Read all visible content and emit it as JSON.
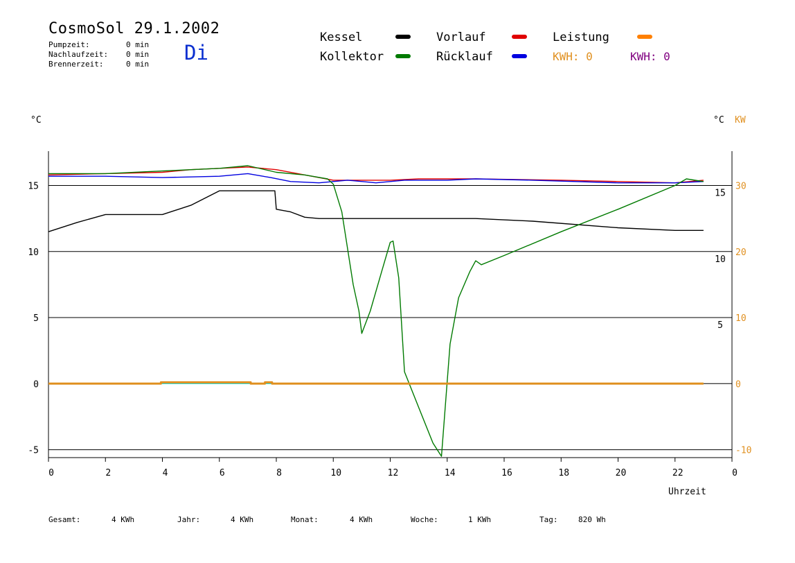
{
  "header": {
    "title": "CosmoSol 29.1.2002",
    "weekday": "Di",
    "stats": [
      {
        "label": "Pumpzeit:",
        "value": "0 min"
      },
      {
        "label": "Nachlaufzeit:",
        "value": "0 min"
      },
      {
        "label": "Brennerzeit:",
        "value": "0 min"
      }
    ]
  },
  "legend": {
    "kessel": {
      "label": "Kessel",
      "color": "#000000"
    },
    "kollektor": {
      "label": "Kollektor",
      "color": "#007a00"
    },
    "vorlauf": {
      "label": "Vorlauf",
      "color": "#e00000"
    },
    "ruecklauf": {
      "label": "Rücklauf",
      "color": "#0000e0"
    },
    "leistung": {
      "label": "Leistung",
      "color": "#ff8000"
    },
    "kwh_1": {
      "label": "KWH: 0",
      "color": "#e09020"
    },
    "kwh_2": {
      "label": "KWH: 0",
      "color": "#800080"
    }
  },
  "axes": {
    "left_unit": "°C",
    "right_unit_c": "°C",
    "right_unit_kw": "KW",
    "x_label": "Uhrzeit"
  },
  "footer": [
    {
      "label": "Gesamt:",
      "value": "4 KWh"
    },
    {
      "label": "Jahr:",
      "value": "4 KWh"
    },
    {
      "label": "Monat:",
      "value": "4 KWh"
    },
    {
      "label": "Woche:",
      "value": "1 KWh"
    },
    {
      "label": "Tag:",
      "value": "820 Wh"
    }
  ],
  "chart_data": {
    "type": "line",
    "xlabel": "Uhrzeit",
    "ylabel": "°C",
    "x_ticks": [
      "0",
      "2",
      "4",
      "6",
      "8",
      "10",
      "12",
      "14",
      "16",
      "18",
      "20",
      "22",
      "0"
    ],
    "x_range": [
      0,
      24
    ],
    "y_left": {
      "ticks": [
        "15",
        "10",
        "5",
        "0",
        "-5"
      ],
      "range": [
        -5.6,
        17.6
      ]
    },
    "y_right_c": {
      "ticks": [
        "15",
        "10",
        "5"
      ]
    },
    "y_right_kw": {
      "ticks": [
        "30",
        "20",
        "10",
        "0",
        "-10"
      ],
      "range": [
        -11.2,
        35.2
      ]
    },
    "grid": "horizontal",
    "series": [
      {
        "name": "Kessel",
        "color": "#000000",
        "axis": "left",
        "points": [
          [
            0,
            11.5
          ],
          [
            1,
            12.2
          ],
          [
            2,
            12.8
          ],
          [
            4,
            12.8
          ],
          [
            5,
            13.5
          ],
          [
            6,
            14.6
          ],
          [
            7.95,
            14.6
          ],
          [
            8.0,
            13.2
          ],
          [
            8.5,
            13.0
          ],
          [
            9,
            12.6
          ],
          [
            9.5,
            12.5
          ],
          [
            12,
            12.5
          ],
          [
            15,
            12.5
          ],
          [
            17,
            12.3
          ],
          [
            20,
            11.8
          ],
          [
            22,
            11.6
          ],
          [
            23,
            11.6
          ]
        ]
      },
      {
        "name": "Vorlauf",
        "color": "#e00000",
        "axis": "left",
        "points": [
          [
            0,
            15.8
          ],
          [
            2,
            15.9
          ],
          [
            4,
            16.0
          ],
          [
            5,
            16.2
          ],
          [
            6,
            16.3
          ],
          [
            7,
            16.4
          ],
          [
            8,
            16.2
          ],
          [
            9,
            15.8
          ],
          [
            10,
            15.4
          ],
          [
            12,
            15.4
          ],
          [
            13,
            15.5
          ],
          [
            14,
            15.5
          ],
          [
            15,
            15.5
          ],
          [
            18,
            15.4
          ],
          [
            20,
            15.3
          ],
          [
            22,
            15.2
          ],
          [
            23,
            15.4
          ]
        ]
      },
      {
        "name": "Rücklauf",
        "color": "#0000e0",
        "axis": "left",
        "points": [
          [
            0,
            15.7
          ],
          [
            2,
            15.7
          ],
          [
            4,
            15.6
          ],
          [
            6,
            15.7
          ],
          [
            7,
            15.9
          ],
          [
            7.8,
            15.6
          ],
          [
            8.5,
            15.3
          ],
          [
            9.5,
            15.2
          ],
          [
            10.5,
            15.4
          ],
          [
            11.5,
            15.2
          ],
          [
            12.5,
            15.4
          ],
          [
            14,
            15.4
          ],
          [
            15,
            15.5
          ],
          [
            17,
            15.4
          ],
          [
            20,
            15.2
          ],
          [
            22,
            15.2
          ],
          [
            23,
            15.3
          ]
        ]
      },
      {
        "name": "Kollektor",
        "color": "#007a00",
        "axis": "left",
        "points": [
          [
            0,
            15.9
          ],
          [
            2,
            15.9
          ],
          [
            4,
            16.1
          ],
          [
            5,
            16.2
          ],
          [
            6,
            16.3
          ],
          [
            7,
            16.5
          ],
          [
            8,
            16.0
          ],
          [
            9,
            15.8
          ],
          [
            9.8,
            15.5
          ],
          [
            10,
            15.1
          ],
          [
            10.3,
            13.0
          ],
          [
            10.7,
            7.5
          ],
          [
            10.9,
            5.5
          ],
          [
            11.0,
            3.8
          ],
          [
            11.3,
            5.5
          ],
          [
            11.7,
            8.5
          ],
          [
            12.0,
            10.7
          ],
          [
            12.1,
            10.8
          ],
          [
            12.3,
            8.0
          ],
          [
            12.5,
            0.9
          ],
          [
            13.0,
            -1.8
          ],
          [
            13.5,
            -4.5
          ],
          [
            13.8,
            -5.5
          ],
          [
            14.1,
            3.0
          ],
          [
            14.4,
            6.5
          ],
          [
            14.8,
            8.5
          ],
          [
            15.0,
            9.3
          ],
          [
            15.2,
            9.0
          ],
          [
            16.0,
            9.7
          ],
          [
            18,
            11.5
          ],
          [
            20,
            13.2
          ],
          [
            22,
            15.0
          ],
          [
            22.4,
            15.5
          ],
          [
            23,
            15.3
          ]
        ]
      },
      {
        "name": "Leistung",
        "color": "#e09020",
        "axis": "right_kw",
        "points": [
          [
            0,
            0
          ],
          [
            3.95,
            0
          ],
          [
            3.95,
            0.2
          ],
          [
            7.1,
            0.2
          ],
          [
            7.1,
            0
          ],
          [
            7.6,
            0
          ],
          [
            7.6,
            0.2
          ],
          [
            7.85,
            0.2
          ],
          [
            7.85,
            0
          ],
          [
            23,
            0
          ]
        ]
      }
    ],
    "baseline": {
      "color": "#00d0d0",
      "value": 0
    }
  }
}
